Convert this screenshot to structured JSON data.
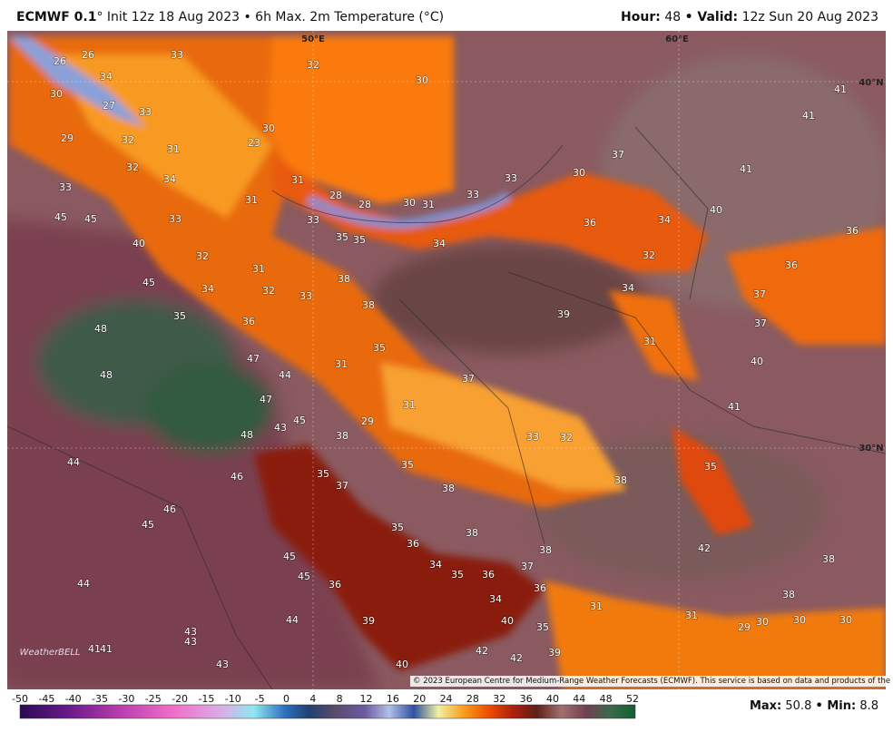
{
  "header": {
    "model": "ECMWF 0.1",
    "init": "° Init 12z 18 Aug 2023 • 6h Max. 2m Temperature (°C)",
    "hour_label": "Hour:",
    "hour": "48",
    "valid_label": "• Valid:",
    "valid": "12z Sun 20 Aug 2023"
  },
  "graticule": [
    "50°E",
    "60°E",
    "40°N",
    "30°N"
  ],
  "logo": "WeatherBELL",
  "copyright": "© 2023 European Centre for Medium-Range Weather Forecasts (ECMWF). This service is based on data and products of the ECMWF.",
  "stats": {
    "max_label": "Max:",
    "max": "50.8",
    "min_label": "• Min:",
    "min": "8.8"
  },
  "colorbar_ticks": [
    -50,
    -45,
    -40,
    -35,
    -30,
    -25,
    -20,
    -15,
    -10,
    -5,
    0,
    4,
    8,
    12,
    16,
    20,
    24,
    28,
    32,
    36,
    40,
    44,
    48,
    52
  ],
  "map_labels": [
    26,
    26,
    33,
    34,
    32,
    30,
    30,
    27,
    33,
    29,
    32,
    31,
    23,
    30,
    32,
    34,
    31,
    33,
    28,
    28,
    30,
    31,
    33,
    33,
    30,
    37,
    41,
    41,
    41,
    45,
    45,
    33,
    31,
    33,
    35,
    35,
    34,
    36,
    34,
    40,
    36,
    40,
    32,
    31,
    32,
    36,
    45,
    34,
    32,
    33,
    38,
    34,
    37,
    38,
    39,
    35,
    36,
    37,
    48,
    35,
    31,
    47,
    40,
    48,
    44,
    31,
    37,
    47,
    31,
    41,
    45,
    43,
    29,
    48,
    38,
    33,
    32,
    44,
    35,
    35,
    46,
    37,
    38,
    38,
    35,
    46,
    45,
    35,
    38,
    36,
    38,
    42,
    38,
    45,
    34,
    35,
    36,
    37,
    45,
    44,
    36,
    36,
    34,
    38,
    31,
    31,
    39,
    40,
    44,
    29,
    30,
    30,
    30,
    35,
    43,
    43,
    41,
    41,
    42,
    42,
    39,
    40,
    43
  ]
}
